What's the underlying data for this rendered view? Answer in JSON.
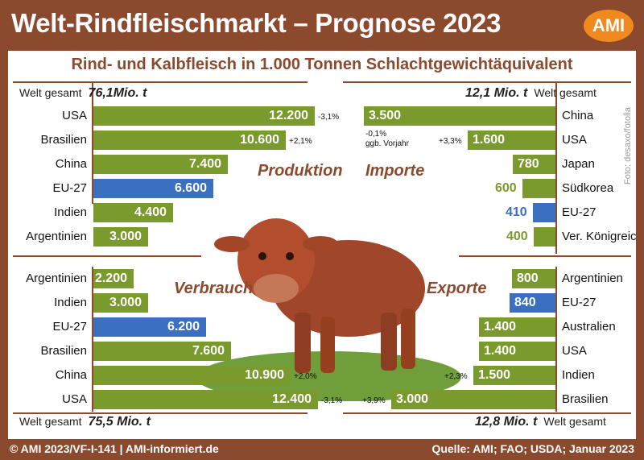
{
  "title": "Welt-Rindfleischmarkt – Prognose 2023",
  "logo": "AMI",
  "subtitle": "Rind- und Kalbfleisch in 1.000 Tonnen Schlachtgewichtäquivalent",
  "footer_left": "© AMI 2023/VF-I-141 | AMI-informiert.de",
  "footer_right": "Quelle: AMI; FAO; USDA; Januar 2023",
  "photo_credit": "Foto: desaxo/fotolia",
  "totals": {
    "world_label": "Welt gesamt",
    "produktion": "76,1Mio. t",
    "importe": "12,1 Mio. t",
    "verbrauch": "75,5 Mio. t",
    "exporte": "12,8 Mio. t"
  },
  "note_vorjahr": [
    "-0,1%",
    "ggb. Vorjahr"
  ],
  "colors": {
    "green": "#7a9a2e",
    "blue": "#3b6fc0",
    "brown": "#8b4a2e",
    "background": "#8b4a2e"
  },
  "chart_data": [
    {
      "type": "bar",
      "title": "Produktion",
      "categories": [
        "USA",
        "Brasilien",
        "China",
        "EU-27",
        "Indien",
        "Argentinien"
      ],
      "values": [
        12200,
        10600,
        7400,
        6600,
        4400,
        3000
      ],
      "labels": [
        "12.200",
        "10.600",
        "7.400",
        "6.600",
        "4.400",
        "3.000"
      ],
      "changes": [
        "-3,1%",
        "+2,1%",
        "",
        "",
        "",
        ""
      ],
      "highlight": [
        "",
        "",
        "",
        "blue",
        "",
        ""
      ]
    },
    {
      "type": "bar",
      "title": "Importe",
      "categories": [
        "China",
        "USA",
        "Japan",
        "Südkorea",
        "EU-27",
        "Ver. Königreich"
      ],
      "values": [
        3500,
        1600,
        780,
        600,
        410,
        400
      ],
      "labels": [
        "3.500",
        "1.600",
        "780",
        "600",
        "410",
        "400"
      ],
      "changes": [
        "",
        "+3,3%",
        "",
        "",
        "",
        ""
      ],
      "highlight": [
        "",
        "",
        "",
        "",
        "blue",
        ""
      ]
    },
    {
      "type": "bar",
      "title": "Verbrauch",
      "categories": [
        "Argentinien",
        "Indien",
        "EU-27",
        "Brasilien",
        "China",
        "USA"
      ],
      "values": [
        2200,
        3000,
        6200,
        7600,
        10900,
        12400
      ],
      "labels": [
        "2.200",
        "3.000",
        "6.200",
        "7.600",
        "10.900",
        "12.400"
      ],
      "changes": [
        "",
        "",
        "",
        "",
        "+2,0%",
        "-3,1%"
      ],
      "highlight": [
        "",
        "",
        "blue",
        "",
        "",
        ""
      ]
    },
    {
      "type": "bar",
      "title": "Exporte",
      "categories": [
        "Argentinien",
        "EU-27",
        "Australien",
        "USA",
        "Indien",
        "Brasilien"
      ],
      "values": [
        800,
        840,
        1400,
        1400,
        1500,
        3000
      ],
      "labels": [
        "800",
        "840",
        "1.400",
        "1.400",
        "1.500",
        "3.000"
      ],
      "changes": [
        "",
        "",
        "",
        "",
        "+2,3%",
        "+3,9%"
      ],
      "highlight": [
        "",
        "blue",
        "",
        "",
        "",
        ""
      ]
    }
  ]
}
